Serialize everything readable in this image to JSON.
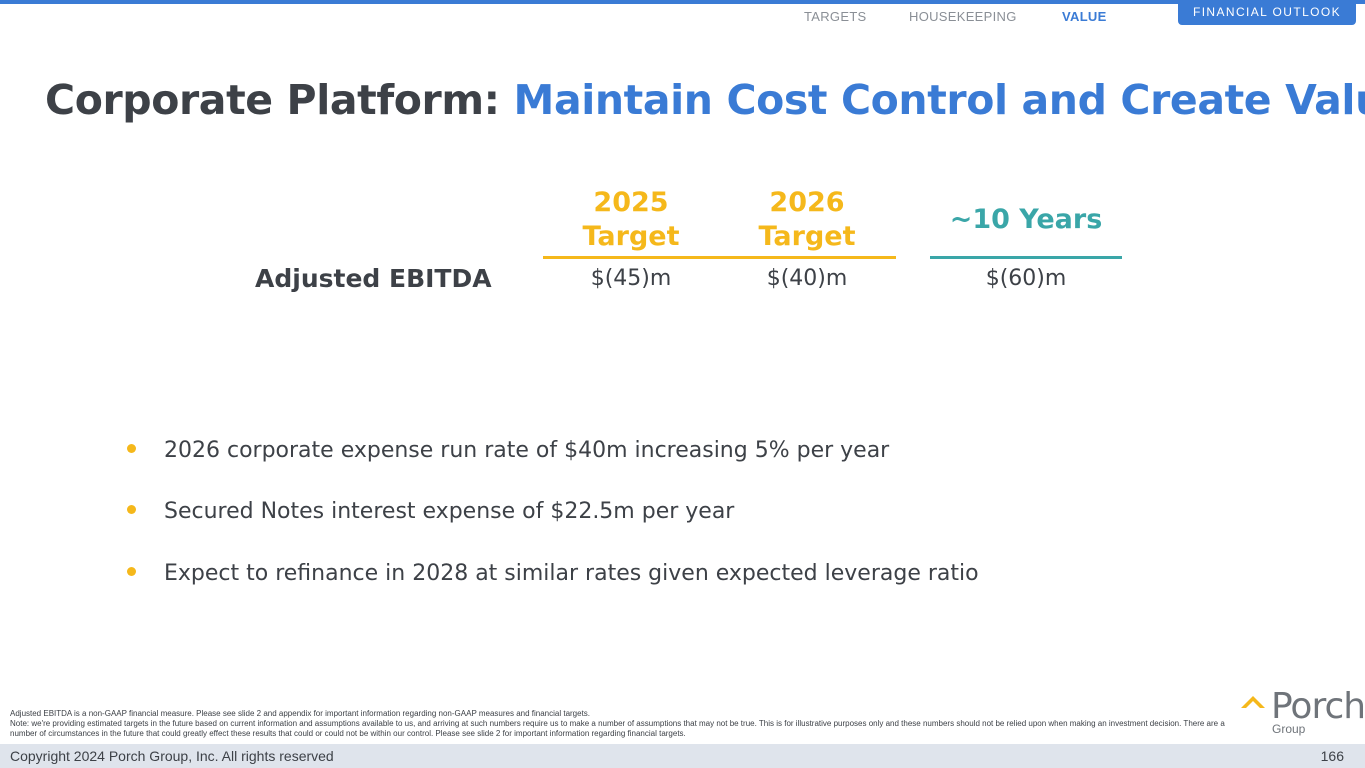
{
  "nav": {
    "items": [
      "TARGETS",
      "HOUSEKEEPING",
      "VALUE"
    ],
    "active": "VALUE",
    "section": "FINANCIAL OUTLOOK"
  },
  "title": {
    "prefix": "Corporate Platform:",
    "highlight": "Maintain Cost Control and Create Value"
  },
  "table": {
    "col1_line1": "2025",
    "col1_line2": "Target",
    "col2_line1": "2026",
    "col2_line2": "Target",
    "col3": "~10 Years",
    "row_label": "Adjusted EBITDA",
    "values": [
      "$(45)m",
      "$(40)m",
      "$(60)m"
    ]
  },
  "bullets": [
    "2026 corporate expense run rate of $40m increasing 5% per year",
    "Secured Notes interest expense of $22.5m per year",
    "Expect to refinance in 2028 at similar rates given expected leverage ratio"
  ],
  "footnotes": [
    "Adjusted EBITDA is a non-GAAP financial measure. Please see slide 2 and appendix for important information regarding non-GAAP measures and financial targets.",
    "Note: we're providing estimated targets in the future based on current information and assumptions available to us, and arriving at such numbers require us to make a number of assumptions that may not be true. This is for illustrative purposes only and these numbers should not be relied upon when making an investment decision. There are a number of circumstances in the future that could greatly effect these results that could or could not be within our control. Please see slide 2 for important information regarding financial targets."
  ],
  "logo": {
    "word": "Porch",
    "sub": "Group"
  },
  "footer": {
    "copyright": "Copyright 2024 Porch Group, Inc. All rights reserved",
    "page": "166"
  },
  "colors": {
    "accent_blue": "#3a7bd5",
    "target_yellow": "#f5b81b",
    "long_term_teal": "#3aa6a8",
    "text_dark": "#3d4147"
  }
}
